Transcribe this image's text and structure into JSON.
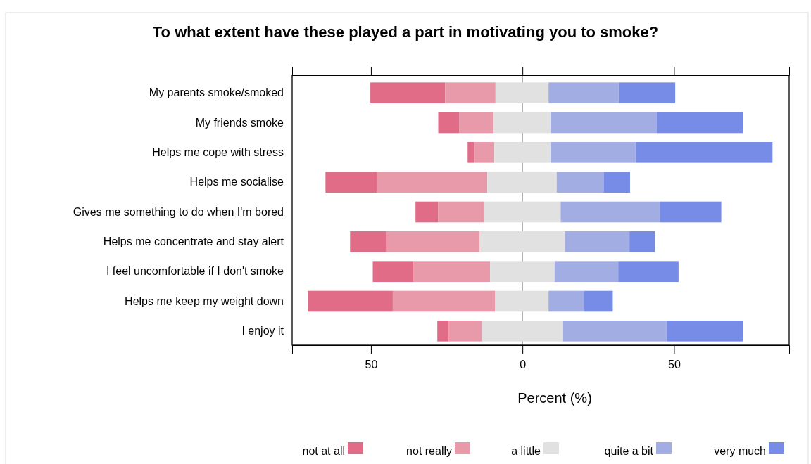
{
  "chart_data": {
    "type": "bar",
    "orientation": "horizontal",
    "title": "To what extent have these played a part in motivating you to smoke?",
    "xlabel": "Percent (%)",
    "categories": [
      "My parents smoke/smoked",
      "My friends smoke",
      "Helps me cope with stress",
      "Helps me socialise",
      "Gives me something to do when I'm bored",
      "Helps me concentrate and stay alert",
      "I feel uncomfortable if I don't smoke",
      "Helps me keep my weight down",
      "I enjoy it"
    ],
    "series": [
      {
        "name": "not at all",
        "color": "#e06c88",
        "base": [
          -50.2,
          -27.8,
          -18.1,
          -65.0,
          -35.3,
          -56.9,
          -49.4,
          -70.8,
          -28.1
        ],
        "values": [
          24.7,
          7.0,
          2.4,
          16.9,
          7.4,
          12.2,
          13.5,
          28.0,
          3.7
        ]
      },
      {
        "name": "not really",
        "color": "#e89aaa",
        "base": [
          -25.5,
          -20.8,
          -15.7,
          -48.1,
          -27.9,
          -44.7,
          -35.9,
          -42.8,
          -24.4
        ],
        "values": [
          16.6,
          11.2,
          6.4,
          36.5,
          15.2,
          30.5,
          25.2,
          33.8,
          11.0
        ]
      },
      {
        "name": "a little",
        "color": "#e1e1e1",
        "base": [
          -8.9,
          -9.6,
          -9.3,
          -11.6,
          -12.7,
          -14.2,
          -10.7,
          -9.0,
          -13.4
        ],
        "values": [
          17.5,
          18.9,
          18.6,
          22.9,
          25.3,
          28.2,
          21.3,
          17.6,
          26.8
        ]
      },
      {
        "name": "quite a bit",
        "color": "#a2ade4",
        "base": [
          8.6,
          9.3,
          9.3,
          11.3,
          12.6,
          14.0,
          10.6,
          8.6,
          13.4
        ],
        "values": [
          23.1,
          34.9,
          28.0,
          15.6,
          32.7,
          21.3,
          21.0,
          11.8,
          34.1
        ]
      },
      {
        "name": "very much",
        "color": "#778ce6",
        "base": [
          31.7,
          44.2,
          37.3,
          26.9,
          45.3,
          35.3,
          31.6,
          20.4,
          47.5
        ],
        "values": [
          18.7,
          28.5,
          45.2,
          8.6,
          20.3,
          8.4,
          19.9,
          9.4,
          25.2
        ]
      }
    ],
    "xlim": [
      -76,
      88
    ],
    "xticks": [
      {
        "value": -50,
        "label": "50"
      },
      0,
      50
    ],
    "ref_lines": [
      {
        "axis": "x",
        "value": 0,
        "color": "#999999"
      }
    ],
    "grid": false,
    "legend": "bottom"
  }
}
